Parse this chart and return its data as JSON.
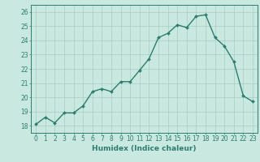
{
  "x": [
    0,
    1,
    2,
    3,
    4,
    5,
    6,
    7,
    8,
    9,
    10,
    11,
    12,
    13,
    14,
    15,
    16,
    17,
    18,
    19,
    20,
    21,
    22,
    23
  ],
  "y": [
    18.1,
    18.6,
    18.2,
    18.9,
    18.9,
    19.4,
    20.4,
    20.6,
    20.4,
    21.1,
    21.1,
    21.9,
    22.7,
    24.2,
    24.5,
    25.1,
    24.9,
    25.7,
    25.8,
    24.2,
    23.6,
    22.5,
    20.1,
    19.7
  ],
  "line_color": "#2e7d6e",
  "marker": "D",
  "marker_size": 2.0,
  "bg_color": "#c8e8e0",
  "grid_color": "#a8ccc4",
  "axis_color": "#2e7d6e",
  "tick_color": "#2e7d6e",
  "label_color": "#2e7d6e",
  "xlabel": "Humidex (Indice chaleur)",
  "ylim": [
    17.5,
    26.5
  ],
  "xlim": [
    -0.5,
    23.5
  ],
  "yticks": [
    18,
    19,
    20,
    21,
    22,
    23,
    24,
    25,
    26
  ],
  "xticks": [
    0,
    1,
    2,
    3,
    4,
    5,
    6,
    7,
    8,
    9,
    10,
    11,
    12,
    13,
    14,
    15,
    16,
    17,
    18,
    19,
    20,
    21,
    22,
    23
  ],
  "xlabel_fontsize": 6.5,
  "tick_fontsize": 5.5,
  "line_width": 1.0
}
